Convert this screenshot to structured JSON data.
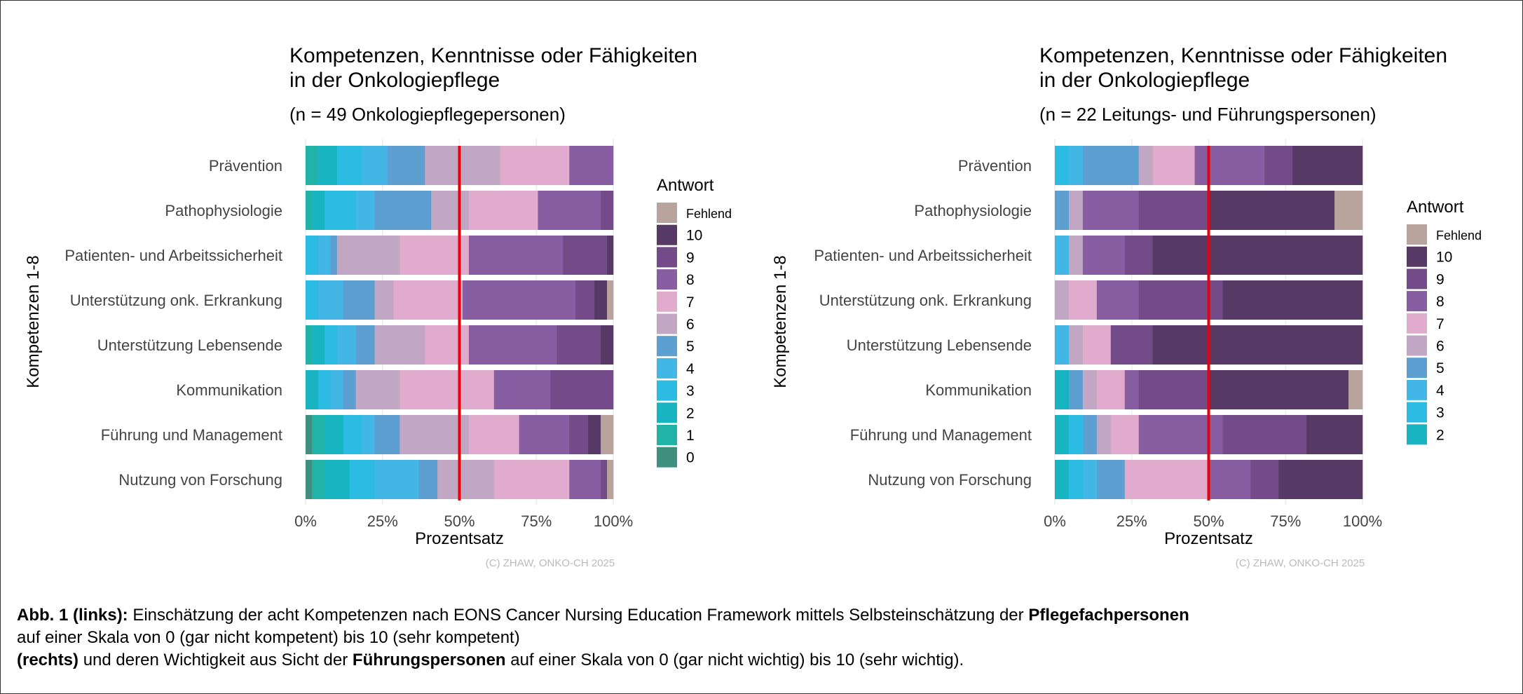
{
  "caption": {
    "line1_bold": "Abb. 1 (links):",
    "line1_text": " Einschätzung der acht Kompetenzen nach EONS Cancer Nursing Education Framework mittels Selbsteinschätzung der ",
    "line1_bold2": "Pflegefachpersonen",
    "line2_text": "auf einer Skala von 0 (gar nicht kompetent) bis 10 (sehr kompetent)",
    "line3_bold": "(rechts)",
    "line3_text": " und deren Wichtigkeit aus Sicht der ",
    "line3_bold2": "Führungspersonen",
    "line3_text2": " auf einer Skala von 0 (gar nicht wichtig) bis 10 (sehr wichtig)."
  },
  "colors": {
    "0": "#3f8f7f",
    "1": "#22b3a8",
    "2": "#19b4c2",
    "3": "#2cbbe3",
    "4": "#42b7e6",
    "5": "#5e9fd2",
    "6": "#c2a7c4",
    "7": "#e1abcd",
    "8": "#885ea2",
    "9": "#724b88",
    "10": "#573966",
    "Fehlend": "#b8a49c",
    "reference_line": "#e8000b"
  },
  "chart_data": [
    {
      "type": "bar",
      "orientation": "horizontal-stacked-percent",
      "title_line1": "Kompetenzen, Kenntnisse oder Fähigkeiten",
      "title_line2": "in der Onkologiepflege",
      "subtitle": "(n = 49 Onkologiepflegepersonen)",
      "n": 49,
      "xlabel": "Prozentsatz",
      "ylabel": "Kompetenzen 1-8",
      "xticks": [
        "0%",
        "25%",
        "50%",
        "75%",
        "100%"
      ],
      "xlim": [
        0,
        100
      ],
      "reference_line_percent": 50,
      "legend_title": "Antwort",
      "legend_position": "right",
      "legend": [
        "Fehlend",
        "10",
        "9",
        "8",
        "7",
        "6",
        "5",
        "4",
        "3",
        "2",
        "1",
        "0"
      ],
      "response_categories": [
        "0",
        "1",
        "2",
        "3",
        "4",
        "5",
        "6",
        "7",
        "8",
        "9",
        "10",
        "Fehlend"
      ],
      "copyright": "(C) ZHAW, ONKO-CH 2025",
      "rows": [
        {
          "label": "Prävention",
          "counts": [
            0,
            2,
            3,
            4,
            4,
            6,
            12,
            11,
            7,
            0,
            0,
            0
          ]
        },
        {
          "label": "Pathophysiologie",
          "counts": [
            0,
            1,
            2,
            5,
            3,
            9,
            6,
            11,
            10,
            2,
            0,
            0
          ]
        },
        {
          "label": "Patienten- und Arbeitssicherheit",
          "counts": [
            0,
            0,
            0,
            2,
            2,
            1,
            10,
            11,
            15,
            7,
            1,
            0
          ]
        },
        {
          "label": "Unterstützung onk. Erkrankung",
          "counts": [
            0,
            0,
            0,
            2,
            4,
            5,
            3,
            11,
            18,
            3,
            2,
            1
          ]
        },
        {
          "label": "Unterstützung Lebensende",
          "counts": [
            0,
            1,
            2,
            2,
            3,
            3,
            8,
            7,
            14,
            7,
            2,
            0
          ]
        },
        {
          "label": "Kommunikation",
          "counts": [
            0,
            0,
            2,
            2,
            2,
            2,
            7,
            15,
            9,
            10,
            0,
            0
          ]
        },
        {
          "label": "Führung und Management",
          "counts": [
            1,
            2,
            3,
            3,
            2,
            4,
            11,
            8,
            8,
            3,
            2,
            2
          ]
        },
        {
          "label": "Nutzung von Forschung",
          "counts": [
            1,
            2,
            4,
            4,
            7,
            3,
            9,
            12,
            5,
            1,
            0,
            1
          ]
        }
      ]
    },
    {
      "type": "bar",
      "orientation": "horizontal-stacked-percent",
      "title_line1": "Kompetenzen, Kenntnisse oder Fähigkeiten",
      "title_line2": "in der Onkologiepflege",
      "subtitle": "(n = 22 Leitungs- und Führungspersonen)",
      "n": 22,
      "xlabel": "Prozentsatz",
      "ylabel": "Kompetenzen 1-8",
      "xticks": [
        "0%",
        "25%",
        "50%",
        "75%",
        "100%"
      ],
      "xlim": [
        0,
        100
      ],
      "reference_line_percent": 50,
      "legend_title": "Antwort",
      "legend_position": "right",
      "legend": [
        "Fehlend",
        "10",
        "9",
        "8",
        "7",
        "6",
        "5",
        "4",
        "3",
        "2"
      ],
      "response_categories": [
        "0",
        "1",
        "2",
        "3",
        "4",
        "5",
        "6",
        "7",
        "8",
        "9",
        "10",
        "Fehlend"
      ],
      "copyright": "(C) ZHAW, ONKO-CH 2025",
      "rows": [
        {
          "label": "Prävention",
          "counts": [
            0,
            0,
            0,
            1,
            1,
            4,
            1,
            3,
            5,
            2,
            5,
            0
          ]
        },
        {
          "label": "Pathophysiologie",
          "counts": [
            0,
            0,
            0,
            0,
            0,
            1,
            1,
            0,
            4,
            5,
            9,
            2
          ]
        },
        {
          "label": "Patienten- und Arbeitssicherheit",
          "counts": [
            0,
            0,
            0,
            0,
            1,
            0,
            1,
            0,
            3,
            2,
            15,
            0
          ]
        },
        {
          "label": "Unterstützung onk. Erkrankung",
          "counts": [
            0,
            0,
            0,
            0,
            0,
            0,
            1,
            2,
            3,
            6,
            10,
            0
          ]
        },
        {
          "label": "Unterstützung Lebensende",
          "counts": [
            0,
            0,
            0,
            0,
            1,
            0,
            1,
            2,
            0,
            3,
            15,
            0
          ]
        },
        {
          "label": "Kommunikation",
          "counts": [
            0,
            0,
            1,
            0,
            0,
            1,
            1,
            2,
            1,
            5,
            10,
            1
          ]
        },
        {
          "label": "Führung und Management",
          "counts": [
            0,
            0,
            1,
            1,
            0,
            1,
            1,
            2,
            6,
            6,
            4,
            0
          ]
        },
        {
          "label": "Nutzung von Forschung",
          "counts": [
            0,
            0,
            1,
            1,
            1,
            2,
            0,
            6,
            3,
            2,
            6,
            0
          ]
        }
      ]
    }
  ]
}
